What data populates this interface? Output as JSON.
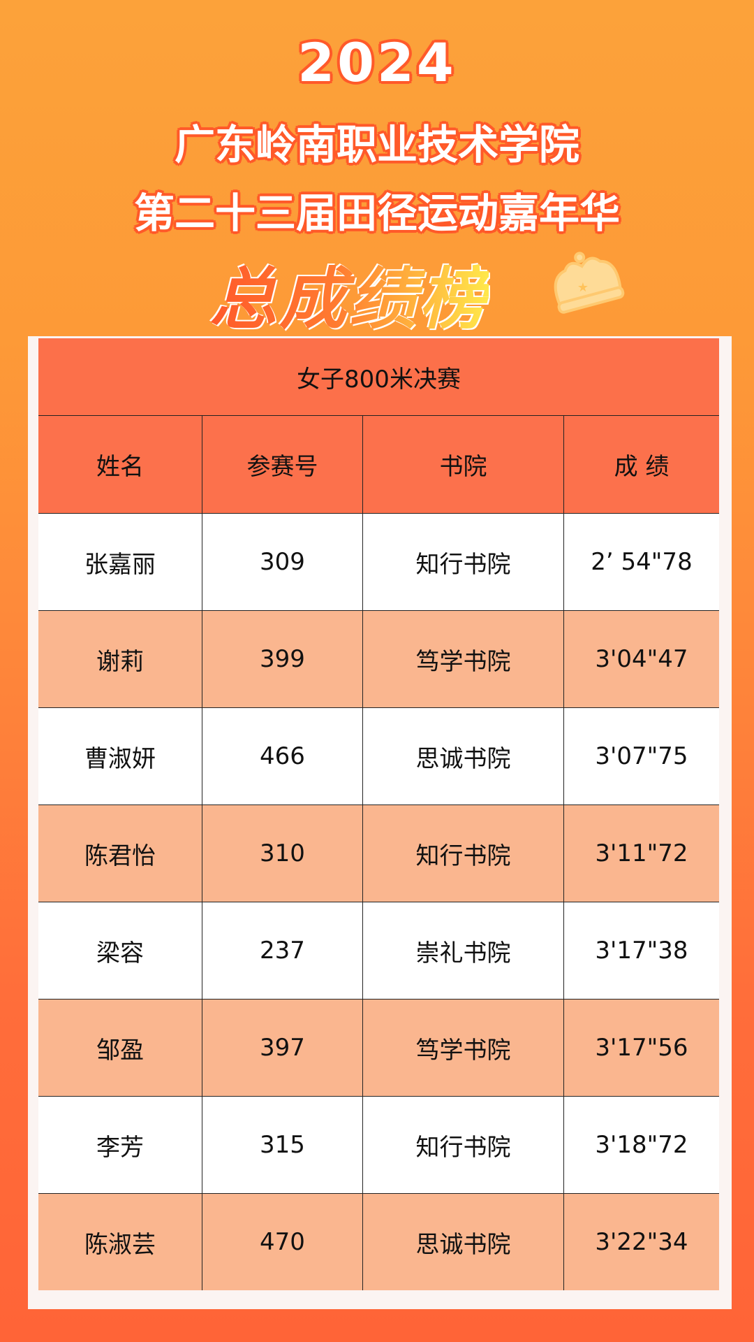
{
  "header": {
    "year": "2024",
    "school": "广东岭南职业技术学院",
    "event": "第二十三届田径运动嘉年华",
    "board_title": "总成绩榜"
  },
  "table": {
    "caption": "女子800米决赛",
    "columns": [
      "姓名",
      "参赛号",
      "书院",
      "成 绩"
    ],
    "rows": [
      [
        "张嘉丽",
        "309",
        "知行书院",
        "2’ 54\"78"
      ],
      [
        "谢莉",
        "399",
        "笃学书院",
        "3'04\"47"
      ],
      [
        "曹淑妍",
        "466",
        "思诚书院",
        "3'07\"75"
      ],
      [
        "陈君怡",
        "310",
        "知行书院",
        "3'11\"72"
      ],
      [
        "梁容",
        "237",
        "崇礼书院",
        "3'17\"38"
      ],
      [
        "邹盈",
        "397",
        "笃学书院",
        "3'17\"56"
      ],
      [
        "李芳",
        "315",
        "知行书院",
        "3'18\"72"
      ],
      [
        "陈淑芸",
        "470",
        "思诚书院",
        "3'22\"34"
      ]
    ]
  },
  "colors": {
    "header_row": "#fc714c",
    "alt_row": "#fab68f",
    "accent": "#ff5a2a"
  },
  "icons": {
    "decoration": "crown-icon"
  }
}
